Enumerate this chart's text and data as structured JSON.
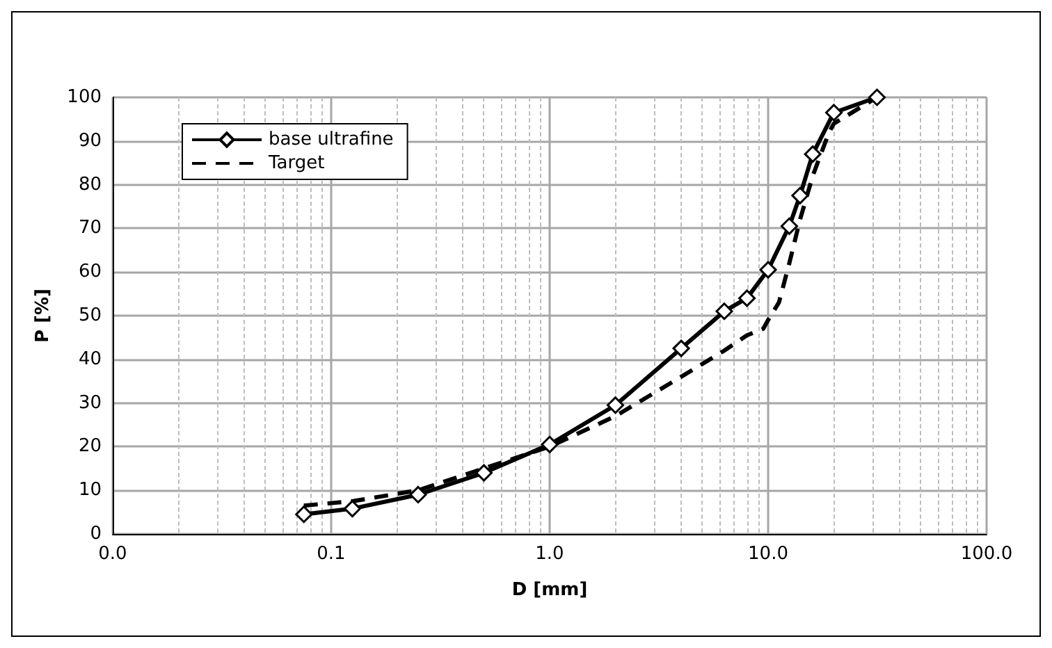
{
  "chart_data": {
    "type": "line",
    "xlabel": "D [mm]",
    "ylabel": "P [%]",
    "log": "x",
    "xlim": [
      0.01,
      100
    ],
    "xticks": [
      {
        "value": 0.01,
        "label": "0.0"
      },
      {
        "value": 0.1,
        "label": "0.1"
      },
      {
        "value": 1,
        "label": "1.0"
      },
      {
        "value": 10,
        "label": "10.0"
      },
      {
        "value": 100,
        "label": "100.0"
      }
    ],
    "ylim": [
      0,
      100
    ],
    "yticks": [
      0,
      10,
      20,
      30,
      40,
      50,
      60,
      70,
      80,
      90,
      100
    ],
    "grid": true,
    "legend": "top left",
    "series": [
      {
        "name": "base ultrafine",
        "color": "#000000",
        "marker": "diamond",
        "line_style": "solid",
        "x": [
          0.075,
          0.125,
          0.25,
          0.5,
          1,
          2,
          4,
          6.3,
          8,
          10,
          12.5,
          14,
          16,
          20,
          31.5
        ],
        "values": [
          4.5,
          5.8,
          9,
          14,
          20.5,
          29.5,
          42.5,
          51,
          54,
          60.5,
          70.5,
          77.5,
          87,
          96.5,
          100
        ]
      },
      {
        "name": "Target",
        "color": "#000000",
        "marker": "none",
        "line_style": "dashed",
        "x": [
          0.075,
          0.125,
          0.25,
          0.5,
          1,
          2,
          4,
          6.3,
          8,
          9.5,
          10,
          11.2,
          12.5,
          14,
          16,
          19,
          20,
          31.5
        ],
        "values": [
          6.5,
          7.5,
          10,
          15,
          20,
          27,
          36,
          42,
          45.5,
          47,
          49,
          53,
          62,
          72,
          82,
          92,
          94,
          100
        ]
      }
    ]
  }
}
